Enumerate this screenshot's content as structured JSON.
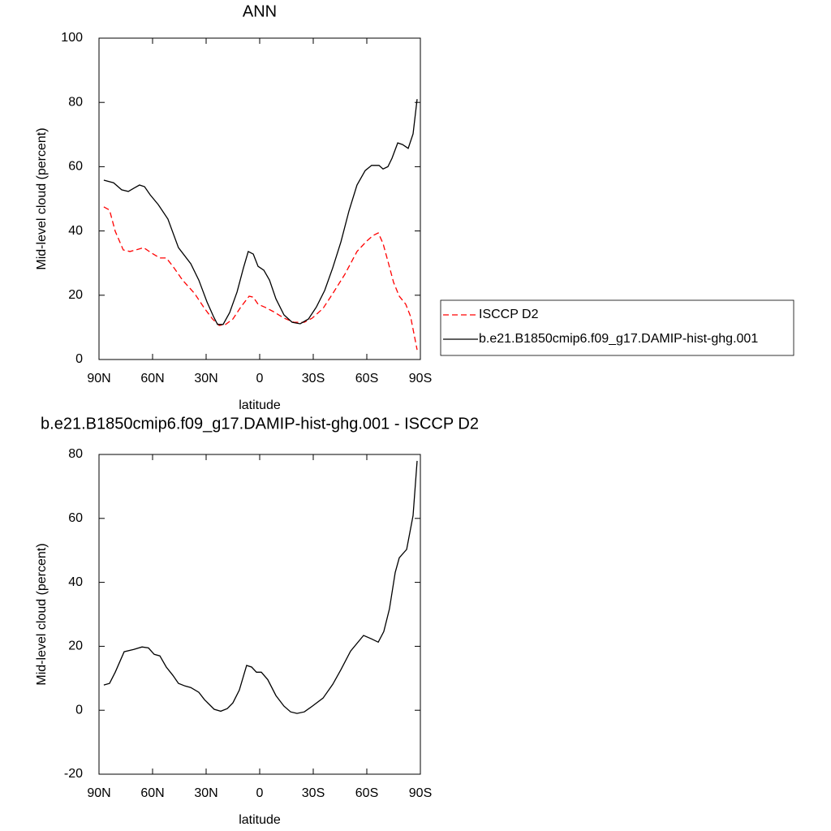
{
  "chart_data": [
    {
      "type": "line",
      "title": "ANN",
      "x_label": "latitude",
      "y_label": "Mid-level cloud (percent)",
      "xlim": [
        90,
        -90
      ],
      "xticks": [
        {
          "value": 90,
          "label": "90N"
        },
        {
          "value": 60,
          "label": "60N"
        },
        {
          "value": 30,
          "label": "30N"
        },
        0,
        {
          "value": -30,
          "label": "30S"
        },
        {
          "value": -60,
          "label": "60S"
        },
        {
          "value": -90,
          "label": "90S"
        }
      ],
      "ylim": [
        0,
        100
      ],
      "yticks": [
        0,
        20,
        40,
        60,
        80,
        100
      ],
      "legend": "right",
      "series": [
        {
          "name": "ISCCP D2",
          "color": "#ff0000",
          "dash": true,
          "x": [
            87.3,
            84.1,
            80.9,
            76.4,
            72.7,
            68.2,
            65,
            60.5,
            55.9,
            52.3,
            48.6,
            43.2,
            36.4,
            30.9,
            26.4,
            22.7,
            19.1,
            15,
            10.5,
            5.9,
            3.6,
            0.9,
            -3.2,
            -7.7,
            -13.6,
            -19.1,
            -25,
            -29.5,
            -35.5,
            -40.9,
            -47.7,
            -54.5,
            -60,
            -63.6,
            -66.4,
            -69.1,
            -71.8,
            -75,
            -78.2,
            -81.8,
            -84.5,
            -88.2
          ],
          "values": [
            47.5,
            46.5,
            39.9,
            34.1,
            33.6,
            34.3,
            34.8,
            33.1,
            31.6,
            31.6,
            29,
            24.7,
            20.5,
            15.9,
            12.6,
            10.6,
            10.9,
            12.6,
            16.4,
            19.7,
            19.4,
            17.2,
            16.2,
            14.9,
            12.9,
            11.6,
            11.6,
            12.9,
            15.9,
            20.5,
            26.5,
            33.6,
            36.9,
            38.6,
            39.4,
            36.1,
            30.6,
            24,
            19.7,
            17.2,
            13.4,
            3
          ]
        },
        {
          "name": "b.e21.B1850cmip6.f09_g17.DAMIP-hist-ghg.001",
          "color": "#000000",
          "dash": false,
          "x": [
            87.3,
            81.8,
            77.3,
            73.6,
            70.5,
            67.3,
            64.5,
            61.4,
            56.8,
            51.4,
            45.5,
            38.6,
            34.1,
            29.5,
            25.9,
            23.6,
            20.5,
            16.8,
            12.7,
            9.1,
            6.4,
            3.6,
            0.9,
            -2.3,
            -5.5,
            -9.1,
            -13.6,
            -18.2,
            -22.7,
            -27.3,
            -31.8,
            -36.4,
            -40.9,
            -45.5,
            -50,
            -54.5,
            -59.1,
            -62.7,
            -66.8,
            -69.1,
            -71.8,
            -74.1,
            -77.3,
            -80,
            -83.2,
            -85.9,
            -88.2
          ],
          "values": [
            55.8,
            55,
            52.8,
            52.3,
            53.3,
            54.3,
            53.8,
            51.3,
            48.2,
            43.7,
            34.8,
            29.8,
            24.7,
            17.9,
            13.4,
            10.9,
            10.9,
            14.6,
            21,
            28.5,
            33.6,
            32.8,
            29,
            27.8,
            24.7,
            18.9,
            13.9,
            11.6,
            11.1,
            12.6,
            16.4,
            21.5,
            28.5,
            36.6,
            46.2,
            54.3,
            58.8,
            60.4,
            60.4,
            59.3,
            60,
            62.6,
            67.4,
            66.9,
            65.7,
            70.2,
            81
          ]
        }
      ]
    },
    {
      "type": "line",
      "title": "b.e21.B1850cmip6.f09_g17.DAMIP-hist-ghg.001 - ISCCP D2",
      "x_label": "latitude",
      "y_label": "Mid-level cloud (percent)",
      "xlim": [
        90,
        -90
      ],
      "xticks": [
        {
          "value": 90,
          "label": "90N"
        },
        {
          "value": 60,
          "label": "60N"
        },
        {
          "value": 30,
          "label": "30N"
        },
        0,
        {
          "value": -30,
          "label": "30S"
        },
        {
          "value": -60,
          "label": "60S"
        },
        {
          "value": -90,
          "label": "90S"
        }
      ],
      "ylim": [
        -20,
        80
      ],
      "yticks": [
        -20,
        0,
        20,
        40,
        60,
        80
      ],
      "series": [
        {
          "color": "#000000",
          "x": [
            87.3,
            84.1,
            80.9,
            75.9,
            70.5,
            65.9,
            62.3,
            59.1,
            55.9,
            52.3,
            48.6,
            45.5,
            41.8,
            38.6,
            34.1,
            30.9,
            28.2,
            25.5,
            21.8,
            18.2,
            15,
            11.4,
            7.3,
            4.5,
            1.8,
            -0.9,
            -4.5,
            -9.1,
            -13.6,
            -17.3,
            -20.9,
            -25,
            -29.5,
            -35.5,
            -40.9,
            -45.5,
            -50.9,
            -58.2,
            -62.7,
            -66.4,
            -69.5,
            -72.7,
            -75.9,
            -78.2,
            -82.3,
            -85.9,
            -88.2
          ],
          "values": [
            7.9,
            8.4,
            11.9,
            18.3,
            19,
            19.8,
            19.5,
            17.5,
            17,
            13.5,
            10.9,
            8.4,
            7.6,
            7.1,
            5.6,
            3.3,
            1.8,
            0.3,
            -0.3,
            0.5,
            2.3,
            6.3,
            14,
            13.5,
            11.9,
            11.9,
            9.6,
            4.6,
            1.3,
            -0.5,
            -1,
            -0.5,
            1.3,
            3.8,
            8.1,
            12.7,
            18.5,
            23.4,
            22.3,
            21.3,
            24.6,
            31.7,
            43.1,
            47.7,
            50.3,
            60.9,
            78
          ]
        }
      ]
    }
  ]
}
